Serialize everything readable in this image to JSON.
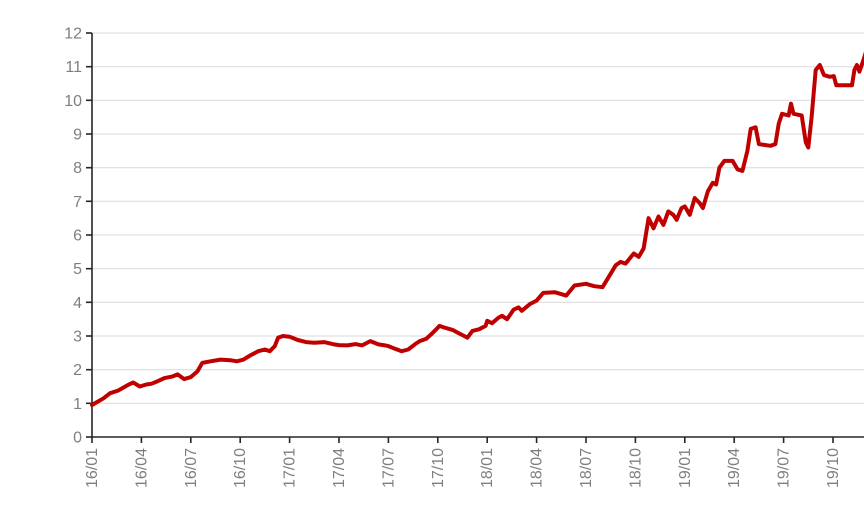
{
  "chart_data": {
    "type": "line",
    "title": "",
    "xlabel": "",
    "ylabel": "",
    "legend": "none",
    "grid": "horizontal",
    "ylim": [
      0,
      12
    ],
    "ytick_values": [
      0,
      1,
      2,
      3,
      4,
      5,
      6,
      7,
      8,
      9,
      10,
      11,
      12
    ],
    "ytick_labels": [
      "0",
      "1",
      "2",
      "3",
      "4",
      "5",
      "6",
      "7",
      "8",
      "9",
      "10",
      "11",
      "12"
    ],
    "xtick_months": [
      0,
      3,
      6,
      9,
      12,
      15,
      18,
      21,
      24,
      27,
      30,
      33,
      36,
      39,
      42,
      45
    ],
    "xtick_labels": [
      "16/01",
      "16/04",
      "16/07",
      "16/10",
      "17/01",
      "17/04",
      "17/07",
      "17/10",
      "18/01",
      "18/04",
      "18/07",
      "18/10",
      "19/01",
      "19/04",
      "19/07",
      "19/10"
    ],
    "x_axis_note": "x expressed in months since 16/01; data extends to ~47.4 months (late 2019/12)",
    "colors": {
      "series": "#C00000",
      "gridline": "#D9D9D9",
      "axis": "#262626",
      "tick_label": "#7F7F7F",
      "background": "#FFFFFF"
    },
    "series": [
      {
        "name": "series-1",
        "color": "#C00000",
        "points": [
          [
            0,
            0.95
          ],
          [
            0.35,
            1.05
          ],
          [
            0.7,
            1.15
          ],
          [
            1.1,
            1.3
          ],
          [
            1.6,
            1.38
          ],
          [
            2.2,
            1.55
          ],
          [
            2.5,
            1.62
          ],
          [
            2.9,
            1.5
          ],
          [
            3.3,
            1.56
          ],
          [
            3.6,
            1.58
          ],
          [
            4,
            1.66
          ],
          [
            4.4,
            1.75
          ],
          [
            4.9,
            1.8
          ],
          [
            5.2,
            1.86
          ],
          [
            5.6,
            1.72
          ],
          [
            6,
            1.78
          ],
          [
            6.4,
            1.95
          ],
          [
            6.7,
            2.2
          ],
          [
            7.2,
            2.25
          ],
          [
            7.8,
            2.3
          ],
          [
            8.4,
            2.28
          ],
          [
            8.8,
            2.25
          ],
          [
            9.2,
            2.3
          ],
          [
            9.6,
            2.42
          ],
          [
            10.1,
            2.55
          ],
          [
            10.5,
            2.6
          ],
          [
            10.8,
            2.55
          ],
          [
            11.1,
            2.7
          ],
          [
            11.3,
            2.95
          ],
          [
            11.6,
            3
          ],
          [
            12,
            2.98
          ],
          [
            12.5,
            2.88
          ],
          [
            13,
            2.82
          ],
          [
            13.5,
            2.8
          ],
          [
            14.1,
            2.82
          ],
          [
            14.7,
            2.75
          ],
          [
            15,
            2.73
          ],
          [
            15.5,
            2.72
          ],
          [
            16,
            2.76
          ],
          [
            16.4,
            2.72
          ],
          [
            16.9,
            2.85
          ],
          [
            17.4,
            2.75
          ],
          [
            17.8,
            2.72
          ],
          [
            18,
            2.7
          ],
          [
            18.4,
            2.62
          ],
          [
            18.8,
            2.55
          ],
          [
            19.2,
            2.6
          ],
          [
            19.6,
            2.75
          ],
          [
            19.9,
            2.85
          ],
          [
            20.3,
            2.92
          ],
          [
            20.6,
            3.05
          ],
          [
            20.9,
            3.2
          ],
          [
            21.1,
            3.3
          ],
          [
            21.4,
            3.25
          ],
          [
            21.9,
            3.18
          ],
          [
            22.2,
            3.1
          ],
          [
            22.6,
            3
          ],
          [
            22.8,
            2.95
          ],
          [
            23.1,
            3.15
          ],
          [
            23.5,
            3.2
          ],
          [
            23.9,
            3.3
          ],
          [
            24,
            3.45
          ],
          [
            24.3,
            3.38
          ],
          [
            24.7,
            3.55
          ],
          [
            24.9,
            3.6
          ],
          [
            25.2,
            3.5
          ],
          [
            25.6,
            3.78
          ],
          [
            25.9,
            3.85
          ],
          [
            26.1,
            3.75
          ],
          [
            26.6,
            3.95
          ],
          [
            27,
            4.05
          ],
          [
            27.4,
            4.28
          ],
          [
            28.1,
            4.3
          ],
          [
            28.8,
            4.2
          ],
          [
            29.3,
            4.5
          ],
          [
            30,
            4.55
          ],
          [
            30.5,
            4.48
          ],
          [
            31,
            4.45
          ],
          [
            31.5,
            4.85
          ],
          [
            31.8,
            5.1
          ],
          [
            32.1,
            5.2
          ],
          [
            32.4,
            5.15
          ],
          [
            32.9,
            5.45
          ],
          [
            33.2,
            5.35
          ],
          [
            33.5,
            5.6
          ],
          [
            33.8,
            6.5
          ],
          [
            34.1,
            6.2
          ],
          [
            34.4,
            6.55
          ],
          [
            34.7,
            6.3
          ],
          [
            35,
            6.7
          ],
          [
            35.3,
            6.6
          ],
          [
            35.5,
            6.45
          ],
          [
            35.8,
            6.8
          ],
          [
            36,
            6.85
          ],
          [
            36.3,
            6.6
          ],
          [
            36.6,
            7.1
          ],
          [
            36.9,
            6.95
          ],
          [
            37.1,
            6.8
          ],
          [
            37.4,
            7.3
          ],
          [
            37.7,
            7.55
          ],
          [
            37.9,
            7.5
          ],
          [
            38.1,
            8
          ],
          [
            38.4,
            8.2
          ],
          [
            38.9,
            8.2
          ],
          [
            39.2,
            7.95
          ],
          [
            39.5,
            7.9
          ],
          [
            39.8,
            8.5
          ],
          [
            40,
            9.15
          ],
          [
            40.3,
            9.2
          ],
          [
            40.5,
            8.7
          ],
          [
            41.2,
            8.65
          ],
          [
            41.5,
            8.7
          ],
          [
            41.7,
            9.3
          ],
          [
            41.9,
            9.6
          ],
          [
            42.3,
            9.55
          ],
          [
            42.45,
            9.9
          ],
          [
            42.6,
            9.6
          ],
          [
            43.1,
            9.55
          ],
          [
            43.35,
            8.75
          ],
          [
            43.5,
            8.6
          ],
          [
            43.7,
            9.5
          ],
          [
            43.95,
            10.9
          ],
          [
            44.2,
            11.05
          ],
          [
            44.45,
            10.75
          ],
          [
            44.8,
            10.7
          ],
          [
            45.05,
            10.72
          ],
          [
            45.2,
            10.45
          ],
          [
            45.7,
            10.45
          ],
          [
            46.15,
            10.45
          ],
          [
            46.3,
            10.9
          ],
          [
            46.45,
            11.05
          ],
          [
            46.6,
            10.85
          ],
          [
            46.85,
            11.2
          ],
          [
            47.1,
            11.6
          ],
          [
            47.25,
            11.45
          ],
          [
            47.35,
            11.25
          ]
        ]
      }
    ]
  }
}
